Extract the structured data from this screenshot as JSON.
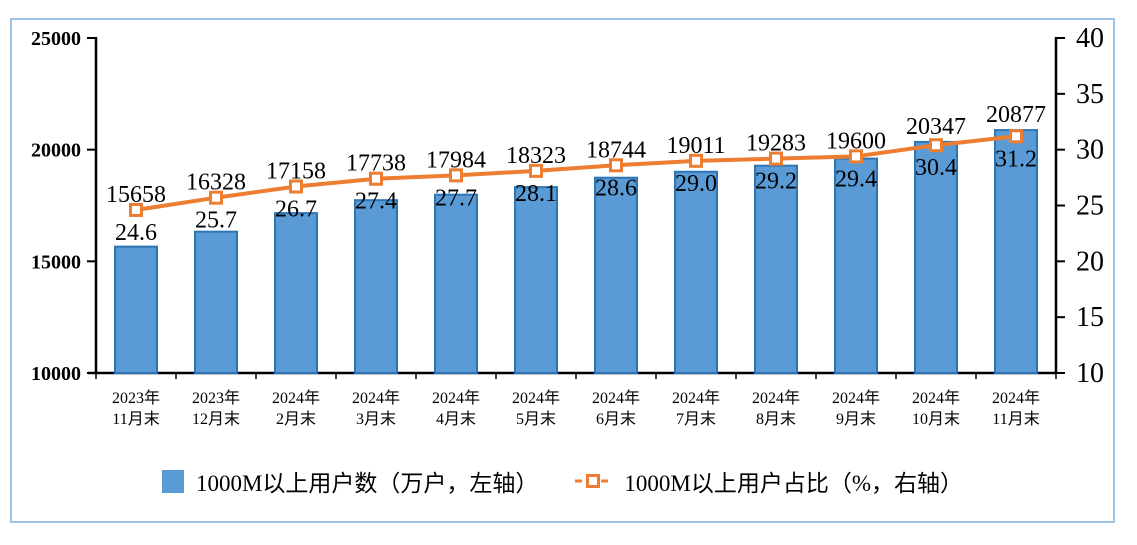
{
  "chart_data": {
    "type": "combo_bar_line",
    "categories": [
      {
        "line1": "2023年",
        "line2": "11月末"
      },
      {
        "line1": "2023年",
        "line2": "12月末"
      },
      {
        "line1": "2024年",
        "line2": "2月末"
      },
      {
        "line1": "2024年",
        "line2": "3月末"
      },
      {
        "line1": "2024年",
        "line2": "4月末"
      },
      {
        "line1": "2024年",
        "line2": "5月末"
      },
      {
        "line1": "2024年",
        "line2": "6月末"
      },
      {
        "line1": "2024年",
        "line2": "7月末"
      },
      {
        "line1": "2024年",
        "line2": "8月末"
      },
      {
        "line1": "2024年",
        "line2": "9月末"
      },
      {
        "line1": "2024年",
        "line2": "10月末"
      },
      {
        "line1": "2024年",
        "line2": "11月末"
      }
    ],
    "series": [
      {
        "name": "1000M以上用户数（万户，左轴）",
        "type": "bar",
        "axis": "left",
        "values": [
          15658,
          16328,
          17158,
          17738,
          17984,
          18323,
          18744,
          19011,
          19283,
          19600,
          20347,
          20877
        ],
        "labels": [
          "15658",
          "16328",
          "17158",
          "17738",
          "17984",
          "18323",
          "18744",
          "19011",
          "19283",
          "19600",
          "20347",
          "20877"
        ],
        "fill": "#5B9BD5",
        "stroke": "#2E75B6"
      },
      {
        "name": "1000M以上用户占比（%，右轴）",
        "type": "line",
        "axis": "right",
        "values": [
          24.6,
          25.7,
          26.7,
          27.4,
          27.7,
          28.1,
          28.6,
          29.0,
          29.2,
          29.4,
          30.4,
          31.2
        ],
        "labels": [
          "24.6",
          "25.7",
          "26.7",
          "27.4",
          "27.7",
          "28.1",
          "28.6",
          "29.0",
          "29.2",
          "29.4",
          "30.4",
          "31.2"
        ],
        "color": "#ED7D31",
        "marker_fill": "#FFFFFF"
      }
    ],
    "left_axis": {
      "min": 10000,
      "max": 25000,
      "ticks": [
        "25000",
        "20000",
        "15000",
        "10000"
      ]
    },
    "right_axis": {
      "min": 10,
      "max": 40,
      "ticks": [
        "40",
        "35",
        "30",
        "25",
        "20",
        "15",
        "10"
      ]
    },
    "axis_color": "#000000",
    "grid": false,
    "legend_position": "bottom"
  },
  "frame": {
    "border_color": "#9DC3E6",
    "background": "#FFFFFF"
  }
}
